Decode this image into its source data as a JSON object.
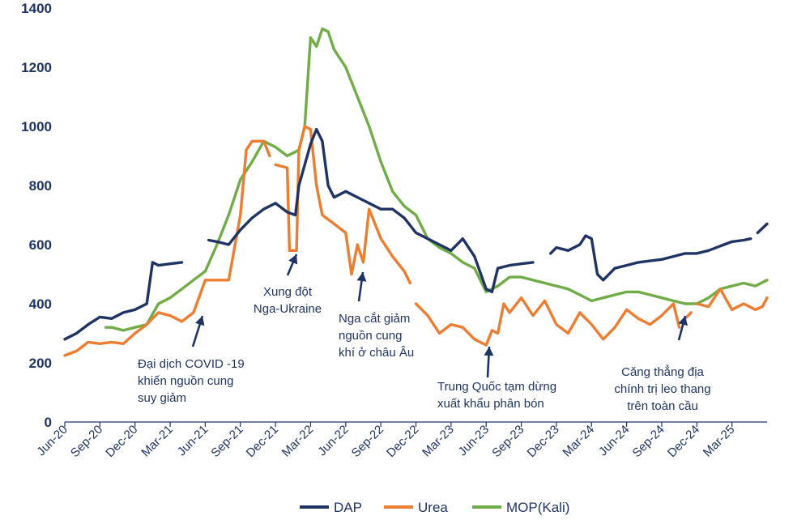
{
  "chart_data": {
    "type": "line",
    "ylim": [
      0,
      1400
    ],
    "yticks": [
      "0",
      "200",
      "400",
      "600",
      "800",
      "1000",
      "1200",
      "1400"
    ],
    "ytick_values": [
      0,
      200,
      400,
      600,
      800,
      1000,
      1200,
      1400
    ],
    "xticks": [
      "Jun-20",
      "Sep-20",
      "Dec-20",
      "Mar-21",
      "Jun-21",
      "Sep-21",
      "Dec-21",
      "Mar-22",
      "Jun-22",
      "Sep-22",
      "Dec-22",
      "Mar-23",
      "Jun-23",
      "Sep-23",
      "Dec-23",
      "Mar-24",
      "Jun-24",
      "Sep-24",
      "Dec-24",
      "Mar-25"
    ],
    "xtick_months": [
      0,
      3,
      6,
      9,
      12,
      15,
      18,
      21,
      24,
      27,
      30,
      33,
      36,
      39,
      42,
      45,
      48,
      51,
      54,
      57
    ],
    "x_range_months": [
      0,
      60
    ],
    "grid": false,
    "legend_position": "bottom",
    "series": [
      {
        "name": "DAP",
        "color": "#1f3464",
        "segments": [
          [
            [
              0,
              280
            ],
            [
              1,
              300
            ],
            [
              2,
              330
            ],
            [
              3,
              355
            ],
            [
              4,
              350
            ],
            [
              5,
              370
            ],
            [
              6,
              380
            ],
            [
              7,
              400
            ],
            [
              7.5,
              540
            ],
            [
              8,
              530
            ],
            [
              9,
              535
            ],
            [
              10,
              540
            ]
          ],
          [
            [
              12.3,
              615
            ],
            [
              13,
              610
            ],
            [
              14,
              600
            ],
            [
              15,
              650
            ],
            [
              16,
              690
            ],
            [
              17,
              720
            ],
            [
              18,
              740
            ],
            [
              19,
              710
            ],
            [
              19.7,
              700
            ],
            [
              20,
              800
            ],
            [
              20.5,
              870
            ],
            [
              21,
              940
            ],
            [
              21.5,
              990
            ],
            [
              22,
              950
            ],
            [
              22.5,
              800
            ],
            [
              23,
              760
            ],
            [
              24,
              780
            ],
            [
              25,
              760
            ],
            [
              26,
              740
            ],
            [
              27,
              720
            ],
            [
              28,
              720
            ],
            [
              29,
              690
            ],
            [
              30,
              640
            ],
            [
              31,
              620
            ],
            [
              32,
              600
            ],
            [
              33,
              580
            ],
            [
              34,
              620
            ],
            [
              35,
              560
            ],
            [
              36,
              450
            ],
            [
              36.5,
              440
            ],
            [
              37,
              520
            ],
            [
              38,
              530
            ],
            [
              39,
              535
            ],
            [
              40,
              540
            ]
          ]
        ],
        "extra_segments": [
          [
            [
              41.5,
              570
            ],
            [
              42,
              590
            ],
            [
              43,
              580
            ],
            [
              44,
              600
            ],
            [
              44.5,
              630
            ],
            [
              45,
              620
            ],
            [
              45.5,
              500
            ],
            [
              46,
              480
            ],
            [
              47,
              520
            ],
            [
              48,
              530
            ],
            [
              49,
              540
            ],
            [
              50,
              545
            ],
            [
              51,
              550
            ],
            [
              52,
              560
            ],
            [
              53,
              570
            ],
            [
              54,
              570
            ],
            [
              55,
              580
            ],
            [
              56,
              595
            ],
            [
              57,
              610
            ],
            [
              58,
              615
            ],
            [
              58.6,
              620
            ]
          ],
          [
            [
              59.2,
              640
            ],
            [
              60,
              670
            ]
          ]
        ]
      },
      {
        "name": "Urea",
        "color": "#ed7d31",
        "segments": [
          [
            [
              0,
              225
            ],
            [
              1,
              240
            ],
            [
              2,
              270
            ],
            [
              3,
              265
            ],
            [
              4,
              270
            ],
            [
              5,
              265
            ],
            [
              6,
              300
            ],
            [
              7,
              330
            ],
            [
              8,
              370
            ],
            [
              9,
              360
            ],
            [
              10,
              340
            ],
            [
              11,
              370
            ],
            [
              12,
              480
            ],
            [
              13,
              480
            ],
            [
              14,
              480
            ],
            [
              15,
              700
            ],
            [
              15.5,
              920
            ],
            [
              16,
              950
            ],
            [
              17,
              950
            ],
            [
              17.5,
              900
            ]
          ],
          [
            [
              18,
              870
            ],
            [
              19,
              860
            ],
            [
              19.2,
              580
            ],
            [
              19.8,
              580
            ],
            [
              20,
              920
            ],
            [
              20.5,
              1000
            ],
            [
              21,
              990
            ],
            [
              21.5,
              800
            ],
            [
              22,
              700
            ],
            [
              23,
              670
            ],
            [
              24,
              640
            ],
            [
              24.5,
              500
            ],
            [
              25,
              600
            ],
            [
              25.5,
              540
            ],
            [
              26,
              720
            ],
            [
              27,
              620
            ],
            [
              28,
              560
            ],
            [
              29,
              510
            ],
            [
              29.5,
              470
            ]
          ],
          [
            [
              30,
              400
            ],
            [
              31,
              360
            ],
            [
              32,
              300
            ],
            [
              33,
              330
            ],
            [
              34,
              320
            ],
            [
              35,
              280
            ],
            [
              36,
              260
            ],
            [
              36.5,
              310
            ],
            [
              37,
              300
            ],
            [
              37.5,
              400
            ],
            [
              38,
              370
            ],
            [
              39,
              420
            ],
            [
              40,
              360
            ],
            [
              41,
              410
            ],
            [
              42,
              330
            ],
            [
              43,
              300
            ],
            [
              44,
              370
            ],
            [
              45,
              330
            ],
            [
              46,
              280
            ],
            [
              47,
              320
            ],
            [
              48,
              380
            ],
            [
              49,
              350
            ],
            [
              50,
              330
            ],
            [
              51,
              360
            ],
            [
              52,
              400
            ],
            [
              52.5,
              320
            ]
          ],
          [
            [
              53,
              350
            ],
            [
              53.5,
              370
            ]
          ],
          [
            [
              54,
              400
            ],
            [
              55,
              390
            ],
            [
              56,
              450
            ],
            [
              57,
              380
            ],
            [
              58,
              400
            ],
            [
              59,
              380
            ],
            [
              59.6,
              390
            ],
            [
              60,
              420
            ]
          ]
        ]
      },
      {
        "name": "MOP(Kali)",
        "color": "#70ad47",
        "segments": [
          [
            [
              3.5,
              320
            ],
            [
              4,
              320
            ],
            [
              5,
              310
            ],
            [
              6,
              320
            ],
            [
              7,
              330
            ],
            [
              8,
              400
            ],
            [
              9,
              420
            ],
            [
              10,
              450
            ],
            [
              11,
              480
            ],
            [
              12,
              510
            ],
            [
              13,
              600
            ],
            [
              14,
              700
            ],
            [
              15,
              820
            ],
            [
              16,
              880
            ],
            [
              17,
              950
            ],
            [
              18,
              930
            ],
            [
              19,
              900
            ],
            [
              20,
              920
            ],
            [
              20.5,
              1000
            ],
            [
              21,
              1300
            ],
            [
              21.5,
              1270
            ],
            [
              22,
              1330
            ],
            [
              22.5,
              1320
            ],
            [
              23,
              1260
            ],
            [
              24,
              1200
            ],
            [
              25,
              1100
            ],
            [
              26,
              1000
            ],
            [
              27,
              880
            ],
            [
              28,
              780
            ],
            [
              29,
              730
            ],
            [
              30,
              700
            ],
            [
              31,
              620
            ],
            [
              32,
              590
            ],
            [
              33,
              570
            ],
            [
              34,
              540
            ],
            [
              35,
              520
            ],
            [
              36,
              440
            ],
            [
              37,
              460
            ],
            [
              38,
              490
            ],
            [
              39,
              490
            ],
            [
              40,
              480
            ],
            [
              41,
              470
            ],
            [
              42,
              460
            ],
            [
              43,
              450
            ],
            [
              44,
              430
            ],
            [
              45,
              410
            ],
            [
              46,
              420
            ],
            [
              47,
              430
            ],
            [
              48,
              440
            ],
            [
              49,
              440
            ],
            [
              50,
              430
            ],
            [
              51,
              420
            ],
            [
              52,
              410
            ],
            [
              53,
              400
            ],
            [
              54,
              400
            ],
            [
              55,
              420
            ],
            [
              56,
              450
            ],
            [
              57,
              460
            ],
            [
              58,
              470
            ],
            [
              59,
              460
            ],
            [
              60,
              480
            ]
          ]
        ]
      }
    ],
    "annotations": [
      {
        "lines": [
          "Đại dịch COVID -19",
          "khiến nguồn cung",
          "suy giảm"
        ]
      },
      {
        "lines": [
          "Xung đột",
          "Nga-Ukraine"
        ]
      },
      {
        "lines": [
          "Nga cắt giảm",
          "nguồn cung",
          "khí ở châu Âu"
        ]
      },
      {
        "lines": [
          "Trung Quốc tạm dừng",
          "xuất khẩu phân bón"
        ]
      },
      {
        "lines": [
          "Căng thẳng địa",
          "chính trị leo thang",
          "trên toàn cầu"
        ]
      }
    ],
    "arrow_color": "#1f3464"
  }
}
